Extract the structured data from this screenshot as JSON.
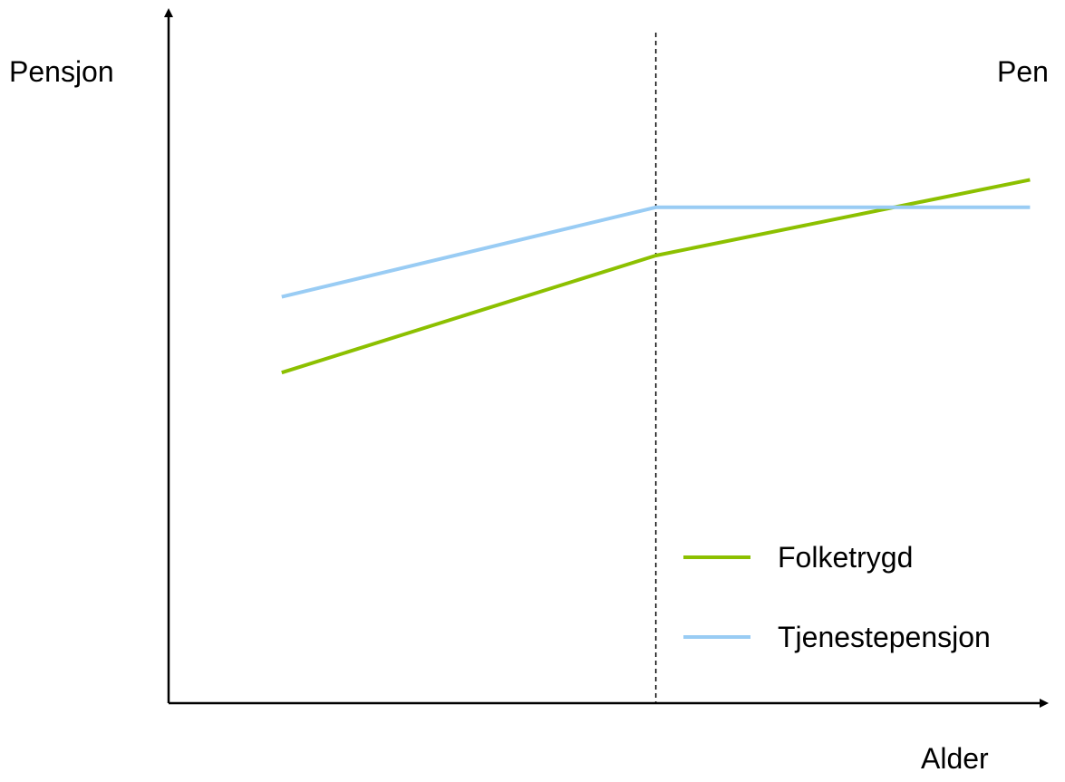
{
  "chart_data": {
    "type": "line",
    "ylabel": "Pensjon",
    "ylabel_right": "Pen",
    "xlabel": "Alder",
    "x_ticks": false,
    "y_ticks": false,
    "grid": false,
    "legend_position": "bottom-right",
    "xlim": [
      0,
      100
    ],
    "ylim": [
      0,
      100
    ],
    "reference_line": {
      "x": 56,
      "style": "dashed"
    },
    "series": [
      {
        "name": "Folketrygd",
        "color": "#8CC000",
        "x": [
          13,
          56,
          99
        ],
        "y": [
          48,
          65,
          76
        ]
      },
      {
        "name": "Tjenestepensjon",
        "color": "#99CCF4",
        "x": [
          13,
          56,
          99
        ],
        "y": [
          59,
          72,
          72
        ]
      }
    ]
  }
}
